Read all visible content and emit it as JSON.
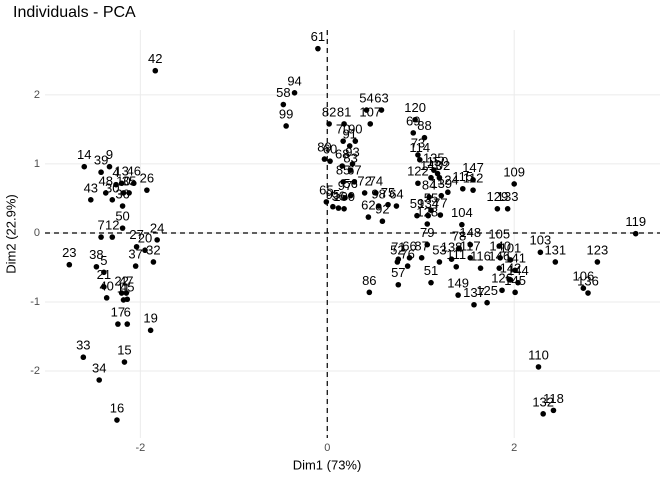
{
  "chart_data": {
    "type": "scatter",
    "title": "Individuals - PCA",
    "x_label": "Dim1 (73%)",
    "y_label": "Dim2 (22.9%)",
    "xlim": [
      -3.02,
      3.56
    ],
    "ylim": [
      -2.97,
      2.94
    ],
    "xticks": [
      -2,
      0,
      2
    ],
    "yticks": [
      -2,
      -1,
      0,
      1,
      2
    ],
    "grid": true,
    "hline": 0,
    "vline": 0,
    "color": "#000000",
    "labels": [
      "61",
      "42",
      "94",
      "58",
      "99",
      "82",
      "81",
      "107",
      "54",
      "63",
      "70",
      "90",
      "120",
      "69",
      "88",
      "114",
      "91",
      "89",
      "60",
      "93",
      "68",
      "83",
      "147",
      "109",
      "73",
      "135",
      "150",
      "143",
      "102",
      "122",
      "124",
      "115",
      "112",
      "139",
      "84",
      "77",
      "104",
      "129",
      "133",
      "59",
      "55",
      "134",
      "128",
      "65",
      "95",
      "96",
      "100",
      "97",
      "72",
      "74",
      "67",
      "85",
      "56",
      "62",
      "92",
      "75",
      "98",
      "64",
      "79",
      "71",
      "66",
      "87",
      "76",
      "52",
      "57",
      "51",
      "86",
      "53",
      "78",
      "148",
      "138",
      "111",
      "116",
      "117",
      "149",
      "137",
      "125",
      "105",
      "140",
      "101",
      "141",
      "146",
      "142",
      "144",
      "126",
      "145",
      "103",
      "131",
      "123",
      "106",
      "136",
      "119",
      "110",
      "132",
      "118",
      "9",
      "14",
      "39",
      "43",
      "13",
      "46",
      "4",
      "26",
      "48",
      "10",
      "35",
      "30",
      "36",
      "50",
      "7",
      "12",
      "24",
      "27",
      "20",
      "32",
      "37",
      "5",
      "38",
      "23",
      "21",
      "40",
      "22",
      "47",
      "11",
      "45",
      "19",
      "17",
      "6",
      "33",
      "15",
      "34",
      "16"
    ],
    "x": [
      -0.1,
      -1.84,
      -0.35,
      -0.47,
      -0.44,
      0.02,
      0.18,
      0.46,
      0.42,
      0.58,
      0.17,
      0.3,
      0.94,
      0.92,
      1.04,
      0.99,
      0.24,
      -0.03,
      0.03,
      0.27,
      0.16,
      0.25,
      1.56,
      2.0,
      0.97,
      1.14,
      1.18,
      1.11,
      1.2,
      0.97,
      1.29,
      1.45,
      1.56,
      1.22,
      1.09,
      1.21,
      1.44,
      1.82,
      1.93,
      0.96,
      1.11,
      1.08,
      1.07,
      -0.01,
      0.06,
      0.12,
      0.18,
      0.19,
      0.4,
      0.52,
      0.29,
      0.17,
      0.25,
      0.44,
      0.59,
      0.65,
      0.55,
      0.74,
      1.07,
      0.76,
      0.88,
      1.01,
      0.86,
      0.75,
      0.76,
      1.11,
      0.45,
      1.2,
      1.41,
      1.53,
      1.33,
      1.38,
      1.64,
      1.53,
      1.4,
      1.57,
      1.71,
      1.84,
      1.85,
      1.96,
      2.01,
      1.84,
      1.96,
      2.04,
      1.87,
      2.01,
      2.28,
      2.44,
      2.89,
      2.74,
      2.79,
      3.3,
      2.26,
      2.31,
      2.42,
      -2.33,
      -2.6,
      -2.42,
      -2.53,
      -2.2,
      -2.07,
      -2.26,
      -1.93,
      -2.37,
      -2.18,
      -2.12,
      -2.3,
      -2.19,
      -2.19,
      -2.42,
      -2.3,
      -1.82,
      -2.04,
      -1.95,
      -1.86,
      -2.05,
      -2.39,
      -2.47,
      -2.76,
      -2.39,
      -2.36,
      -2.2,
      -2.15,
      -2.18,
      -2.14,
      -1.89,
      -2.24,
      -2.14,
      -2.61,
      -2.17,
      -2.44,
      -2.25
    ],
    "y": [
      2.67,
      2.35,
      2.03,
      1.86,
      1.55,
      1.58,
      1.58,
      1.58,
      1.78,
      1.78,
      1.33,
      1.33,
      1.64,
      1.45,
      1.38,
      1.06,
      1.26,
      1.07,
      1.04,
      1.0,
      0.97,
      0.91,
      0.77,
      0.71,
      1.13,
      0.91,
      0.86,
      0.8,
      0.8,
      0.72,
      0.59,
      0.64,
      0.62,
      0.54,
      0.52,
      0.26,
      0.12,
      0.35,
      0.35,
      0.25,
      0.33,
      0.25,
      0.13,
      0.45,
      0.38,
      0.36,
      0.35,
      0.51,
      0.58,
      0.58,
      0.74,
      0.74,
      0.54,
      0.23,
      0.17,
      0.41,
      0.39,
      0.39,
      -0.17,
      -0.38,
      -0.36,
      -0.36,
      -0.48,
      -0.42,
      -0.75,
      -0.72,
      -0.86,
      -0.42,
      -0.22,
      -0.17,
      -0.38,
      -0.49,
      -0.51,
      -0.36,
      -0.9,
      -1.04,
      -1.01,
      -0.19,
      -0.36,
      -0.39,
      -0.54,
      -0.51,
      -0.68,
      -0.72,
      -0.83,
      -0.86,
      -0.28,
      -0.42,
      -0.42,
      -0.8,
      -0.87,
      -0.01,
      -1.94,
      -2.62,
      -2.57,
      0.96,
      0.96,
      0.88,
      0.48,
      0.72,
      0.72,
      0.7,
      0.62,
      0.58,
      0.58,
      0.58,
      0.48,
      0.39,
      0.07,
      -0.06,
      -0.06,
      -0.1,
      -0.2,
      -0.25,
      -0.42,
      -0.48,
      -0.57,
      -0.49,
      -0.46,
      -0.78,
      -0.94,
      -0.87,
      -0.87,
      -0.97,
      -0.96,
      -1.41,
      -1.32,
      -1.32,
      -1.8,
      -1.87,
      -2.13,
      -2.71
    ]
  }
}
